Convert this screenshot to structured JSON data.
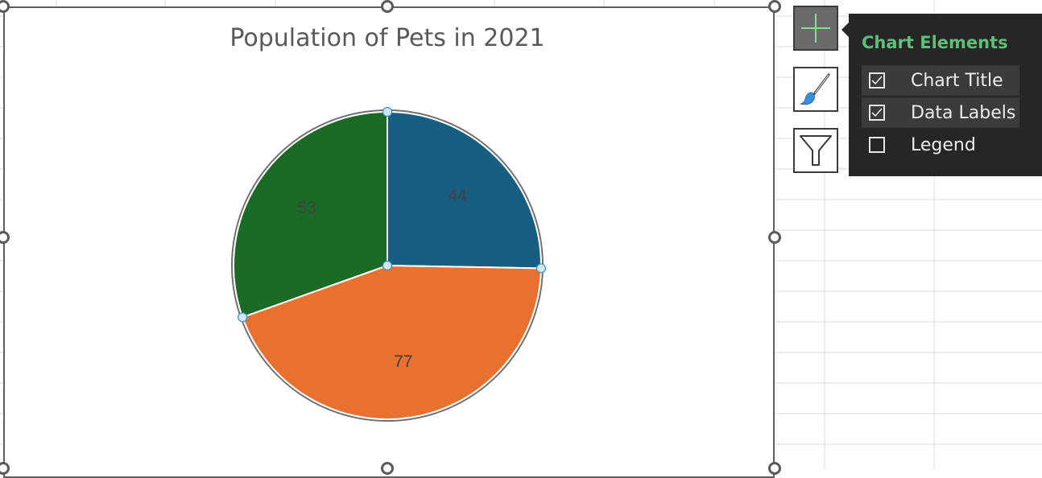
{
  "chart_data": {
    "type": "pie",
    "title": "Population of Pets in 2021",
    "categories": [
      "",
      "",
      ""
    ],
    "values": [
      44,
      77,
      53
    ],
    "colors": [
      "#175f82",
      "#e87130",
      "#1b6b26"
    ],
    "start_angle_deg": 0,
    "direction": "clockwise",
    "data_labels": true,
    "legend": "none"
  },
  "chart_elements_panel": {
    "heading": "Chart Elements",
    "options": [
      {
        "label": "Chart Title",
        "checked": true
      },
      {
        "label": "Data Labels",
        "checked": true
      },
      {
        "label": "Legend",
        "checked": false
      }
    ]
  },
  "side_buttons": {
    "elements_icon": "plus-icon",
    "styles_icon": "paintbrush-icon",
    "filters_icon": "funnel-icon"
  },
  "colors": {
    "accent_green": "#5fbf7a",
    "panel_bg": "#262626"
  }
}
